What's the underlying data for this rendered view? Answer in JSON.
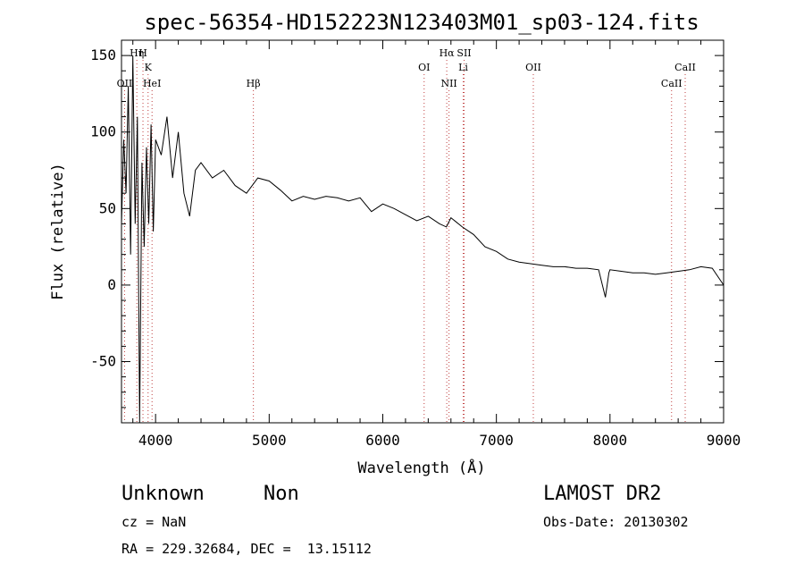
{
  "chart_data": {
    "type": "line",
    "title": "spec-56354-HD152223N123403M01_sp03-124.fits",
    "xlabel": "Wavelength (Å)",
    "ylabel": "Flux (relative)",
    "xlim": [
      3700,
      9000
    ],
    "ylim": [
      -90,
      160
    ],
    "xticks": [
      4000,
      5000,
      6000,
      7000,
      8000,
      9000
    ],
    "yticks": [
      -50,
      0,
      50,
      100,
      150
    ],
    "grid": false,
    "series": [
      {
        "x": [
          3700,
          3720,
          3740,
          3760,
          3780,
          3800,
          3820,
          3840,
          3860,
          3880,
          3900,
          3920,
          3940,
          3960,
          3980,
          4000,
          4050,
          4100,
          4150,
          4200,
          4250,
          4300,
          4350,
          4400,
          4500,
          4600,
          4700,
          4800,
          4900,
          5000,
          5100,
          5200,
          5300,
          5400,
          5500,
          5600,
          5700,
          5800,
          5900,
          6000,
          6100,
          6200,
          6300,
          6400,
          6500,
          6560,
          6600,
          6700,
          6800,
          6900,
          7000,
          7100,
          7200,
          7300,
          7400,
          7500,
          7600,
          7700,
          7800,
          7900,
          7960,
          7990,
          8000,
          8100,
          8200,
          8300,
          8400,
          8500,
          8600,
          8700,
          8800,
          8900,
          9000
        ],
        "y": [
          40,
          95,
          60,
          130,
          20,
          150,
          40,
          110,
          -90,
          80,
          25,
          90,
          40,
          105,
          35,
          95,
          85,
          110,
          70,
          100,
          60,
          45,
          75,
          80,
          70,
          75,
          65,
          60,
          70,
          68,
          62,
          55,
          58,
          56,
          58,
          57,
          55,
          57,
          48,
          53,
          50,
          46,
          42,
          45,
          40,
          38,
          44,
          38,
          33,
          25,
          22,
          17,
          15,
          14,
          13,
          12,
          12,
          11,
          11,
          10,
          -8,
          8,
          10,
          9,
          8,
          8,
          7,
          8,
          9,
          10,
          12,
          11,
          0
        ]
      }
    ],
    "line_markers": [
      {
        "label": "OII",
        "x": 3727,
        "row": 3
      },
      {
        "label": "Hη",
        "x": 3835,
        "row": 1
      },
      {
        "label": "H",
        "x": 3889,
        "row": 1
      },
      {
        "label": "K",
        "x": 3934,
        "row": 2
      },
      {
        "label": "HeI",
        "x": 3969,
        "row": 3
      },
      {
        "label": "Hβ",
        "x": 4861,
        "row": 3
      },
      {
        "label": "OI",
        "x": 6364,
        "row": 2
      },
      {
        "label": "Hα",
        "x": 6563,
        "row": 1
      },
      {
        "label": "NII",
        "x": 6583,
        "row": 3
      },
      {
        "label": "SII",
        "x": 6716,
        "row": 1
      },
      {
        "label": "Li",
        "x": 6708,
        "row": 2
      },
      {
        "label": "OII",
        "x": 7325,
        "row": 2
      },
      {
        "label": "CaII",
        "x": 8542,
        "row": 3
      },
      {
        "label": "CaII",
        "x": 8662,
        "row": 2
      }
    ]
  },
  "info": {
    "class": "Unknown",
    "subclass": "Non",
    "survey": "LAMOST DR2",
    "cz": "cz = NaN",
    "obs_date": "Obs-Date: 20130302",
    "coords": "RA = 229.32684, DEC =  13.15112"
  }
}
